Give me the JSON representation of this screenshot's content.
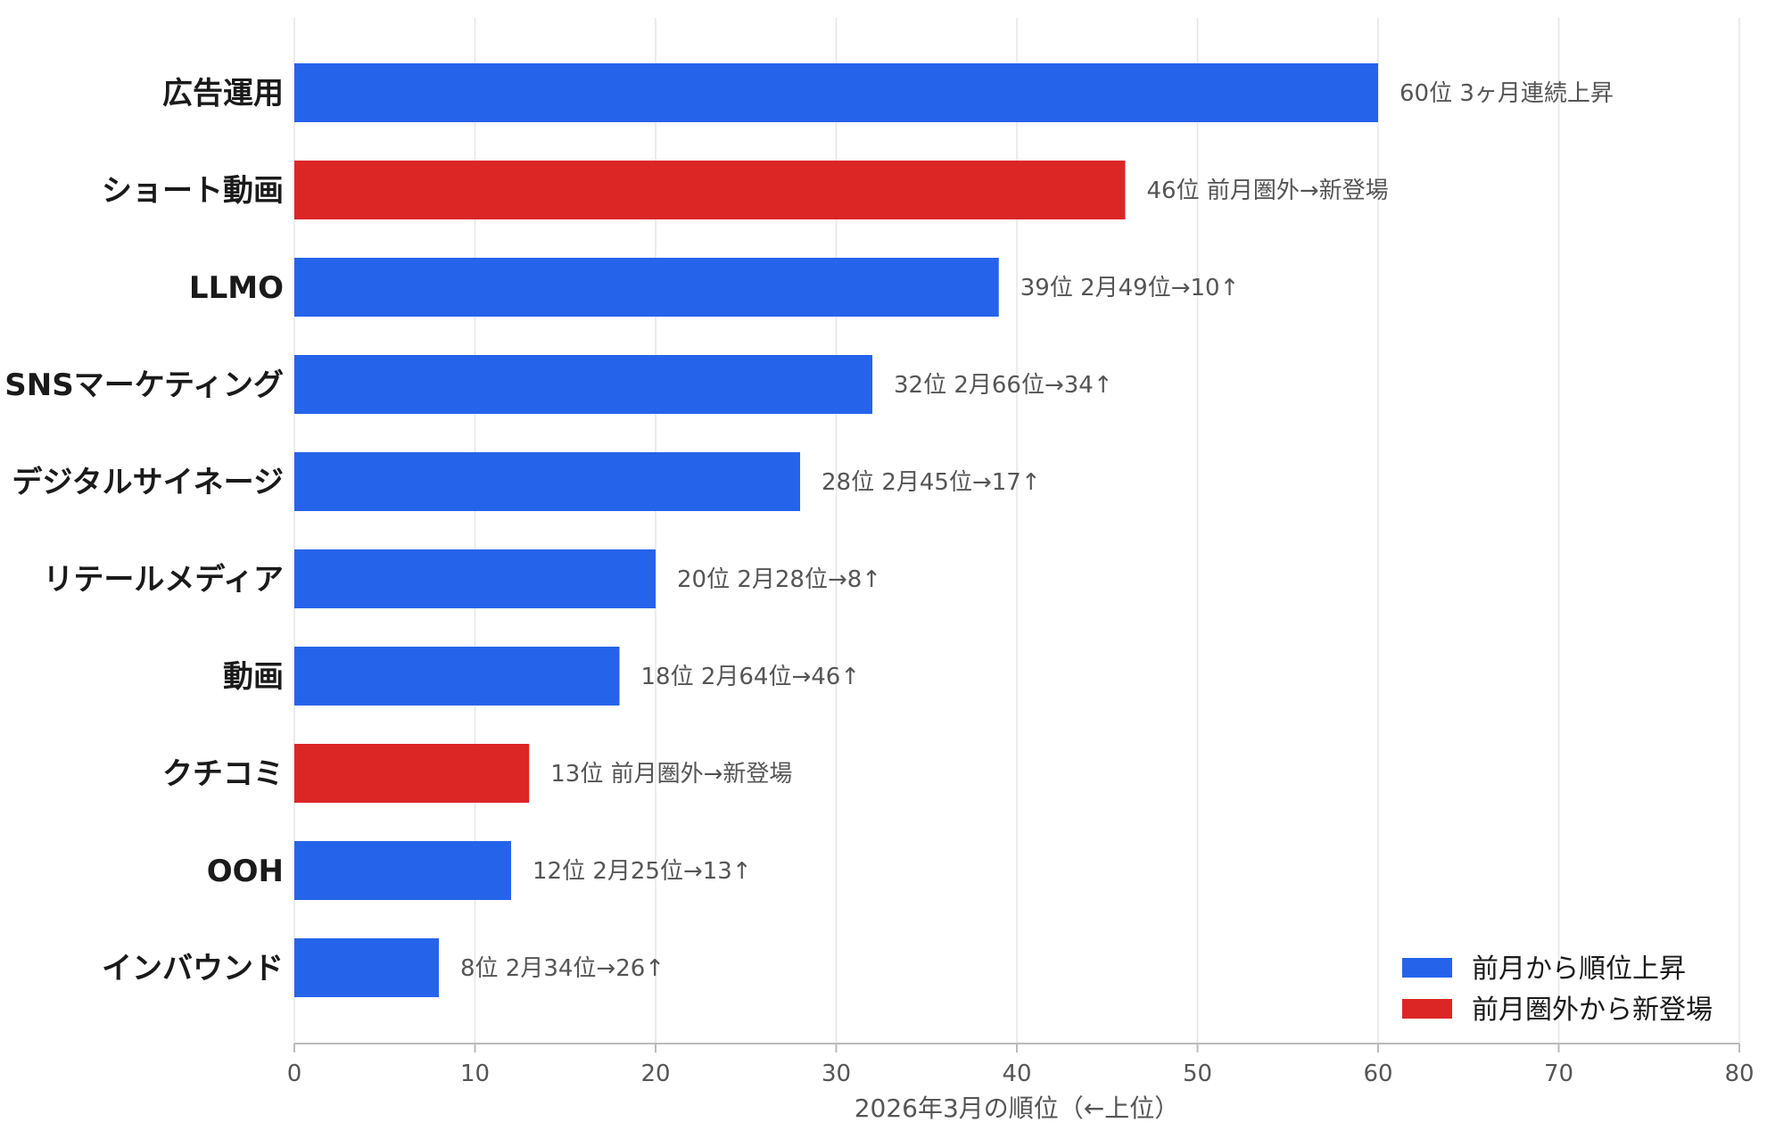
{
  "chart_data": {
    "type": "bar",
    "orientation": "horizontal",
    "categories": [
      "広告運用",
      "ショート動画",
      "LLMO",
      "SNSマーケティング",
      "デジタルサイネージ",
      "リテールメディア",
      "動画",
      "クチコミ",
      "OOH",
      "インバウンド"
    ],
    "values": [
      60,
      46,
      39,
      32,
      28,
      20,
      18,
      13,
      12,
      8
    ],
    "status": [
      "up",
      "new",
      "up",
      "up",
      "up",
      "up",
      "up",
      "new",
      "up",
      "up"
    ],
    "bar_labels": [
      "60位  3ヶ月連続上昇",
      "46位  前月圏外→新登場",
      "39位  2月49位→10↑",
      "32位  2月66位→34↑",
      "28位  2月45位→17↑",
      "20位  2月28位→8↑",
      "18位  2月64位→46↑",
      "13位  前月圏外→新登場",
      "12位  2月25位→13↑",
      "8位  2月34位→26↑"
    ],
    "xlabel": "2026年3月の順位（←上位）",
    "xlim": [
      0,
      80
    ],
    "xticks": [
      0,
      10,
      20,
      30,
      40,
      50,
      60,
      70,
      80
    ],
    "grid": "vertical",
    "legend": {
      "position": "bottom-right",
      "items": [
        {
          "key": "up",
          "label": "前月から順位上昇",
          "color": "#2563eb"
        },
        {
          "key": "new",
          "label": "前月圏外から新登場",
          "color": "#dc2626"
        }
      ]
    }
  }
}
